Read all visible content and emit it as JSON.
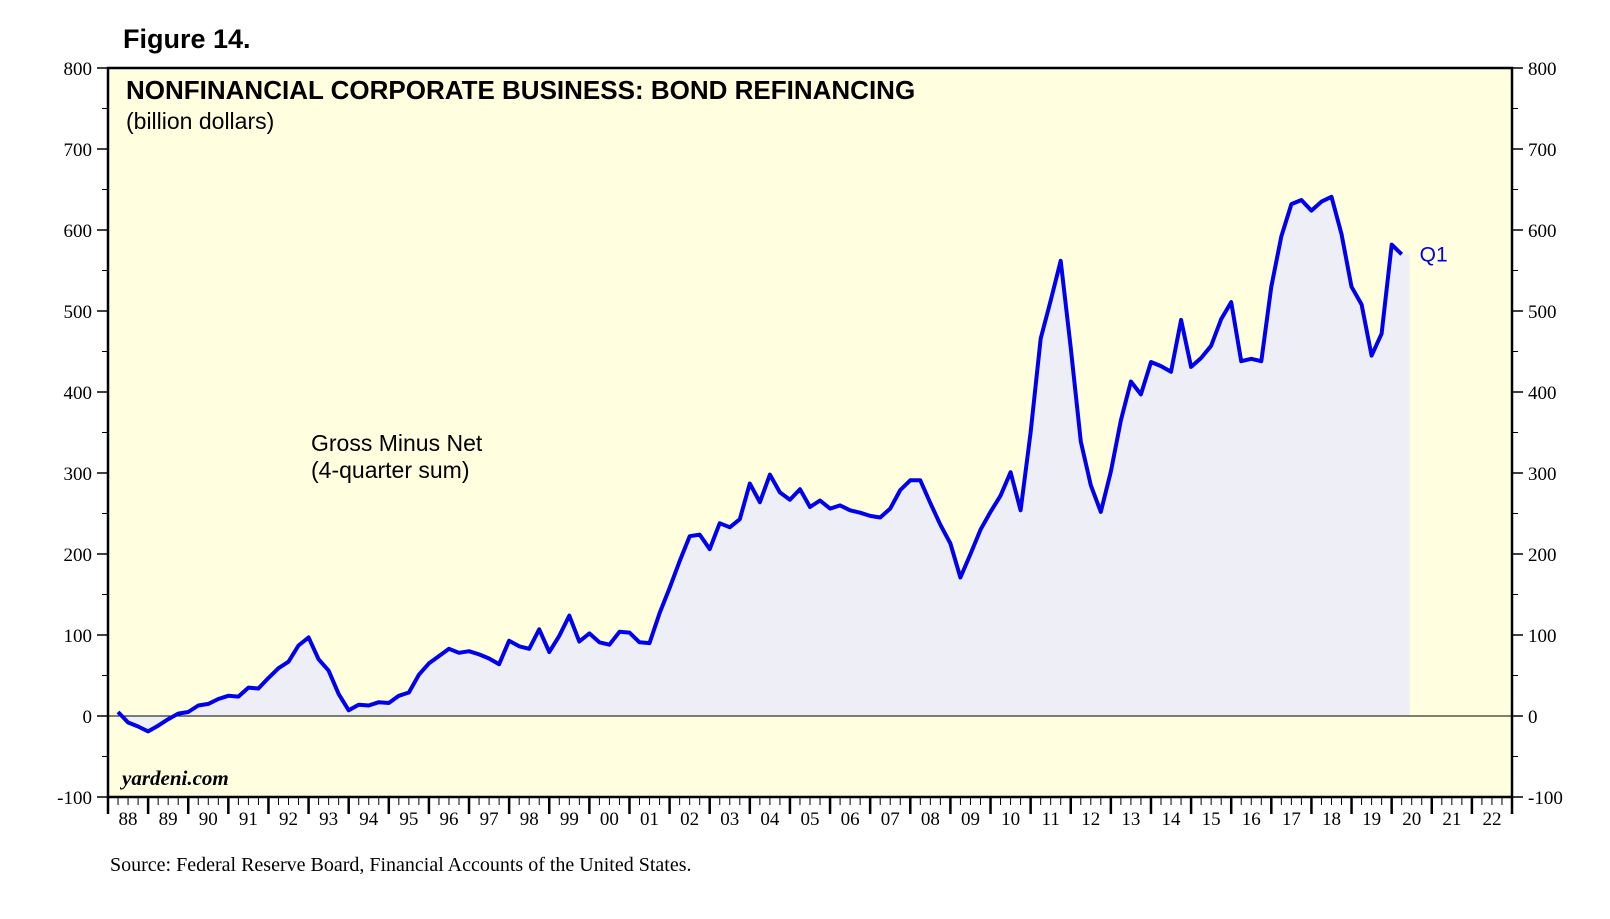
{
  "figure_label": "Figure 14.",
  "source": "Source: Federal Reserve Board, Financial Accounts of the United States.",
  "colors": {
    "background": "#ffffe0",
    "line": "#0000ee",
    "fill": "#eeeef6"
  },
  "chart_data": {
    "type": "area",
    "title": "NONFINANCIAL CORPORATE BUSINESS: BOND REFINANCING",
    "subtitle": "(billion dollars)",
    "annotation": [
      "Gross Minus Net",
      "(4-quarter sum)"
    ],
    "watermark": "yardeni.com",
    "end_label": "Q1",
    "ylim": [
      -100,
      800
    ],
    "y_ticks": [
      -100,
      0,
      100,
      200,
      300,
      400,
      500,
      600,
      700,
      800
    ],
    "y_tick_labels": [
      "-100",
      "0",
      "100",
      "200",
      "300",
      "400",
      "500",
      "600",
      "700",
      "800"
    ],
    "xlim": [
      1988,
      2023
    ],
    "x_tick_labels": [
      "88",
      "89",
      "90",
      "91",
      "92",
      "93",
      "94",
      "95",
      "96",
      "97",
      "98",
      "99",
      "00",
      "01",
      "02",
      "03",
      "04",
      "05",
      "06",
      "07",
      "08",
      "09",
      "10",
      "11",
      "12",
      "13",
      "14",
      "15",
      "16",
      "17",
      "18",
      "19",
      "20",
      "21",
      "22"
    ],
    "series": [
      {
        "name": "Gross Minus Net (4-quarter sum)",
        "x": [
          1988.25,
          1988.5,
          1988.75,
          1989.0,
          1989.25,
          1989.5,
          1989.75,
          1990.0,
          1990.25,
          1990.5,
          1990.75,
          1991.0,
          1991.25,
          1991.5,
          1991.75,
          1992.0,
          1992.25,
          1992.5,
          1992.75,
          1993.0,
          1993.25,
          1993.5,
          1993.75,
          1994.0,
          1994.25,
          1994.5,
          1994.75,
          1995.0,
          1995.25,
          1995.5,
          1995.75,
          1996.0,
          1996.25,
          1996.5,
          1996.75,
          1997.0,
          1997.25,
          1997.5,
          1997.75,
          1998.0,
          1998.25,
          1998.5,
          1998.75,
          1999.0,
          1999.25,
          1999.5,
          1999.75,
          2000.0,
          2000.25,
          2000.5,
          2000.75,
          2001.0,
          2001.25,
          2001.5,
          2001.75,
          2002.0,
          2002.25,
          2002.5,
          2002.75,
          2003.0,
          2003.25,
          2003.5,
          2003.75,
          2004.0,
          2004.25,
          2004.5,
          2004.75,
          2005.0,
          2005.25,
          2005.5,
          2005.75,
          2006.0,
          2006.25,
          2006.5,
          2006.75,
          2007.0,
          2007.25,
          2007.5,
          2007.75,
          2008.0,
          2008.25,
          2008.5,
          2008.75,
          2009.0,
          2009.25,
          2009.5,
          2009.75,
          2010.0,
          2010.25,
          2010.5,
          2010.75,
          2011.0,
          2011.25,
          2011.5,
          2011.75,
          2012.0,
          2012.25,
          2012.5,
          2012.75,
          2013.0,
          2013.25,
          2013.5,
          2013.75,
          2014.0,
          2014.25,
          2014.5,
          2014.75,
          2015.0,
          2015.25,
          2015.5,
          2015.75,
          2016.0,
          2016.25,
          2016.5,
          2016.75,
          2017.0,
          2017.25,
          2017.5,
          2017.75,
          2018.0,
          2018.25,
          2018.5,
          2018.75,
          2019.0,
          2019.25,
          2019.5,
          2019.75,
          2020.0,
          2020.25
        ],
        "values": [
          5,
          -8,
          -13,
          -19,
          -12,
          -4,
          3,
          5,
          13,
          15,
          21,
          25,
          24,
          35,
          34,
          47,
          59,
          67,
          87,
          97,
          70,
          56,
          27,
          7,
          14,
          13,
          17,
          16,
          25,
          29,
          51,
          65,
          74,
          83,
          78,
          80,
          76,
          71,
          64,
          93,
          86,
          83,
          107,
          79,
          99,
          124,
          92,
          102,
          91,
          88,
          104,
          103,
          91,
          90,
          127,
          158,
          191,
          222,
          224,
          206,
          238,
          233,
          243,
          287,
          264,
          298,
          276,
          267,
          280,
          258,
          266,
          256,
          260,
          254,
          251,
          247,
          245,
          256,
          279,
          291,
          291,
          263,
          236,
          213,
          171,
          200,
          230,
          252,
          272,
          301,
          254,
          350,
          466,
          513,
          562,
          455,
          339,
          285,
          252,
          302,
          365,
          413,
          397,
          437,
          432,
          425,
          489,
          431,
          442,
          457,
          490,
          511,
          438,
          441,
          438,
          530,
          592,
          632,
          637,
          624,
          635,
          641,
          595,
          530,
          508,
          445,
          472,
          582,
          570
        ]
      }
    ]
  }
}
